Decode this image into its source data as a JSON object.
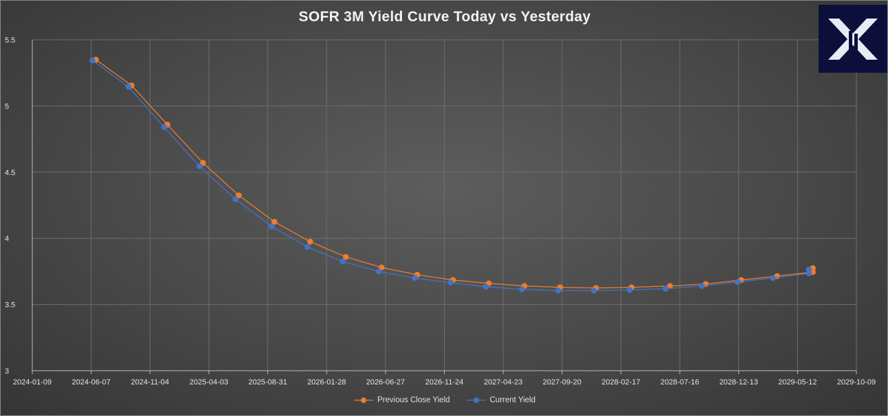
{
  "colors": {
    "previous": "#ed7d31",
    "current": "#4472c4",
    "grid": "#6e6e6e",
    "text": "#e6e6e6",
    "logo_bg": "#0b0f3a"
  },
  "logo": {
    "icon": "x-logo-icon"
  },
  "chart_data": {
    "type": "line",
    "title": "SOFR 3M Yield Curve Today vs Yesterday",
    "xlabel": "",
    "ylabel": "",
    "ylim": [
      3,
      5.5
    ],
    "yticks": [
      3,
      3.5,
      4,
      4.5,
      5,
      5.5
    ],
    "ytick_labels": [
      "3",
      "3.5",
      "4",
      "4.5",
      "5",
      "5.5"
    ],
    "xlim": [
      "2024-01-09",
      "2029-10-09"
    ],
    "xticks": [
      "2024-01-09",
      "2024-06-07",
      "2024-11-04",
      "2025-04-03",
      "2025-08-31",
      "2026-01-28",
      "2026-06-27",
      "2026-11-24",
      "2027-04-23",
      "2027-09-20",
      "2028-02-17",
      "2028-07-16",
      "2028-12-13",
      "2029-05-12",
      "2029-10-09"
    ],
    "grid": true,
    "legend": "bottom",
    "series": [
      {
        "name": "Previous Close Yield",
        "color": "#ed7d31",
        "points": [
          [
            "2024-06-19",
            5.35
          ],
          [
            "2024-09-18",
            5.155
          ],
          [
            "2024-12-18",
            4.86
          ],
          [
            "2025-03-19",
            4.57
          ],
          [
            "2025-06-18",
            4.325
          ],
          [
            "2025-09-17",
            4.125
          ],
          [
            "2025-12-17",
            3.975
          ],
          [
            "2026-03-18",
            3.86
          ],
          [
            "2026-06-17",
            3.78
          ],
          [
            "2026-09-16",
            3.725
          ],
          [
            "2026-12-16",
            3.685
          ],
          [
            "2027-03-17",
            3.66
          ],
          [
            "2027-06-16",
            3.64
          ],
          [
            "2027-09-15",
            3.63
          ],
          [
            "2027-12-15",
            3.625
          ],
          [
            "2028-03-15",
            3.63
          ],
          [
            "2028-06-21",
            3.64
          ],
          [
            "2028-09-20",
            3.655
          ],
          [
            "2028-12-20",
            3.685
          ],
          [
            "2029-03-21",
            3.715
          ],
          [
            "2029-06-20",
            3.745
          ]
        ],
        "extra_points": [
          [
            "2029-06-20",
            3.775
          ]
        ]
      },
      {
        "name": "Current Yield",
        "color": "#4472c4",
        "points": [
          [
            "2024-06-10",
            5.345
          ],
          [
            "2024-09-10",
            5.145
          ],
          [
            "2024-12-10",
            4.84
          ],
          [
            "2025-03-10",
            4.545
          ],
          [
            "2025-06-10",
            4.295
          ],
          [
            "2025-09-10",
            4.09
          ],
          [
            "2025-12-10",
            3.935
          ],
          [
            "2026-03-10",
            3.825
          ],
          [
            "2026-06-10",
            3.75
          ],
          [
            "2026-09-10",
            3.7
          ],
          [
            "2026-12-10",
            3.665
          ],
          [
            "2027-03-10",
            3.635
          ],
          [
            "2027-06-10",
            3.615
          ],
          [
            "2027-09-10",
            3.605
          ],
          [
            "2027-12-10",
            3.605
          ],
          [
            "2028-03-10",
            3.61
          ],
          [
            "2028-06-10",
            3.62
          ],
          [
            "2028-09-10",
            3.64
          ],
          [
            "2028-12-10",
            3.67
          ],
          [
            "2029-03-10",
            3.7
          ],
          [
            "2029-06-10",
            3.735
          ]
        ],
        "extra_points": [
          [
            "2029-06-10",
            3.765
          ]
        ]
      }
    ]
  }
}
